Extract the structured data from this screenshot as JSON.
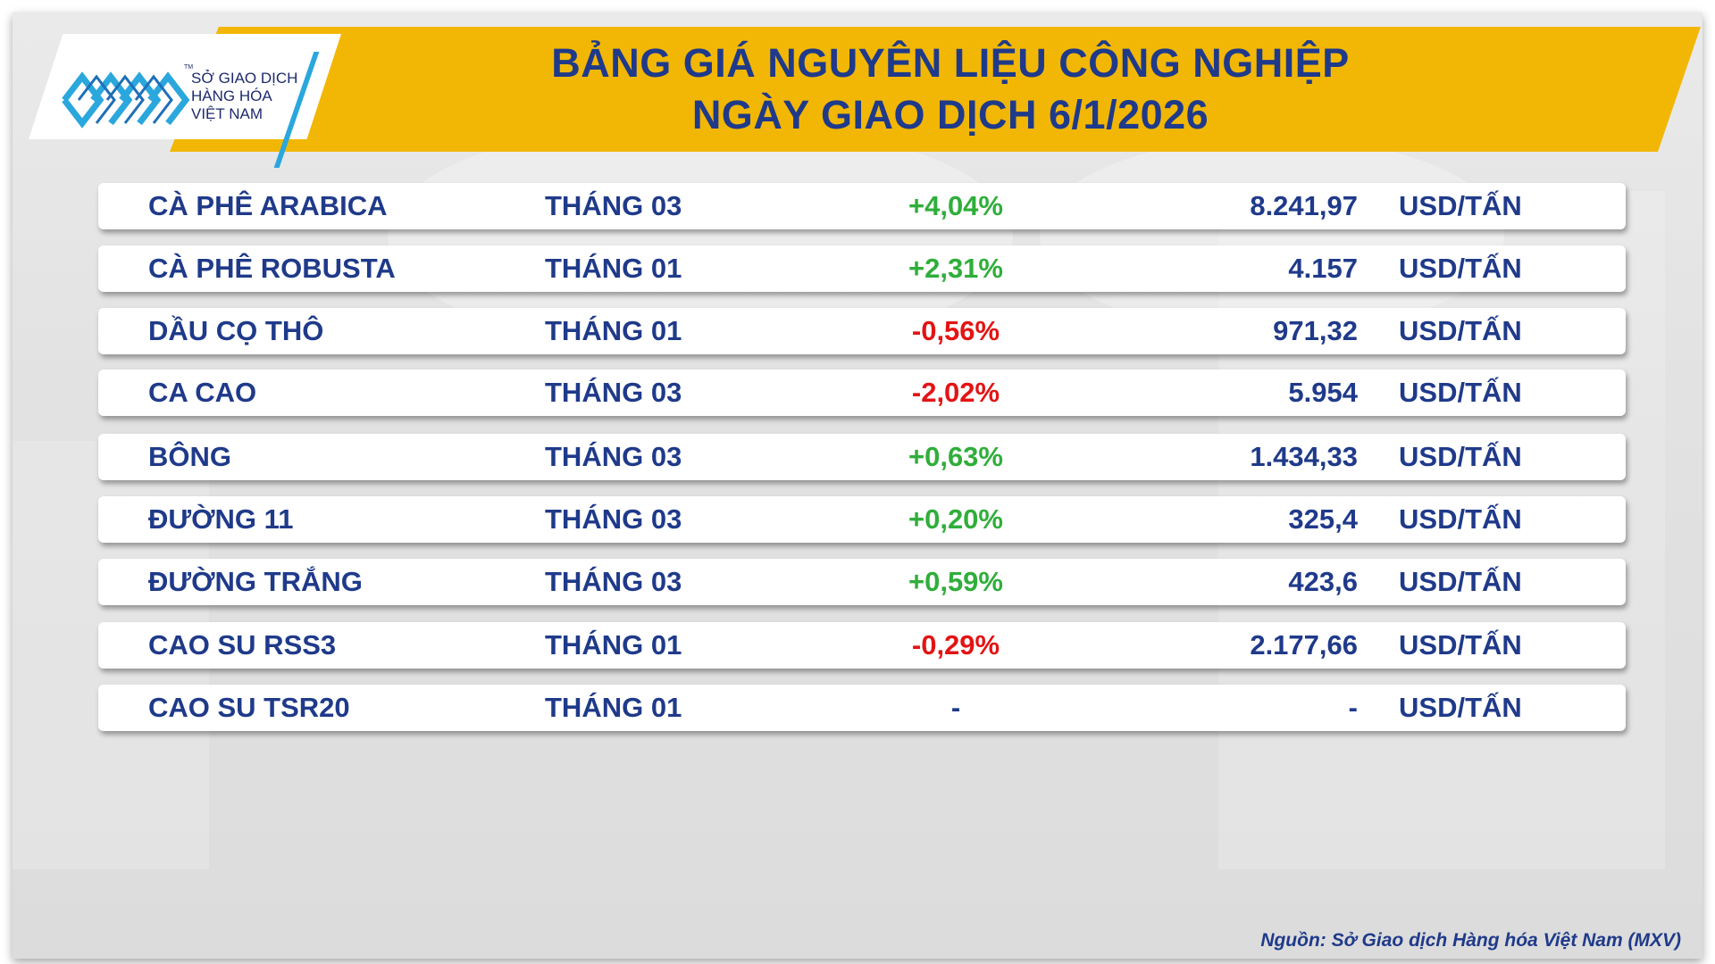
{
  "logo": {
    "line1": "SỞ GIAO DỊCH",
    "line2": "HÀNG HÓA",
    "line3": "VIỆT NAM",
    "tm": "TM"
  },
  "title": {
    "line1": "BẢNG GIÁ NGUYÊN LIỆU CÔNG NGHIỆP",
    "line2": "NGÀY GIAO DỊCH 6/1/2026"
  },
  "colors": {
    "banner": "#f2b705",
    "title_text": "#1f3a8a",
    "up": "#2fae3a",
    "down": "#e31414",
    "logo_blue": "#2aa7dd"
  },
  "rows": [
    {
      "name": "CÀ PHÊ ARABICA",
      "month": "THÁNG 03",
      "change": "+4,04%",
      "direction": "up",
      "price": "8.241,97",
      "unit": "USD/TẤN"
    },
    {
      "name": "CÀ PHÊ ROBUSTA",
      "month": "THÁNG 01",
      "change": "+2,31%",
      "direction": "up",
      "price": "4.157",
      "unit": "USD/TẤN"
    },
    {
      "name": "DẦU CỌ THÔ",
      "month": "THÁNG 01",
      "change": "-0,56%",
      "direction": "down",
      "price": "971,32",
      "unit": "USD/TẤN"
    },
    {
      "name": "CA CAO",
      "month": "THÁNG 03",
      "change": "-2,02%",
      "direction": "down",
      "price": "5.954",
      "unit": "USD/TẤN"
    },
    {
      "name": "BÔNG",
      "month": "THÁNG 03",
      "change": "+0,63%",
      "direction": "up",
      "price": "1.434,33",
      "unit": "USD/TẤN"
    },
    {
      "name": "ĐƯỜNG 11",
      "month": "THÁNG 03",
      "change": "+0,20%",
      "direction": "up",
      "price": "325,4",
      "unit": "USD/TẤN"
    },
    {
      "name": "ĐƯỜNG TRẮNG",
      "month": "THÁNG 03",
      "change": "+0,59%",
      "direction": "up",
      "price": "423,6",
      "unit": "USD/TẤN"
    },
    {
      "name": "CAO SU RSS3",
      "month": "THÁNG 01",
      "change": "-0,29%",
      "direction": "down",
      "price": "2.177,66",
      "unit": "USD/TẤN"
    },
    {
      "name": "CAO SU TSR20",
      "month": "THÁNG 01",
      "change": "-",
      "direction": "flat",
      "price": "-",
      "unit": "USD/TẤN"
    }
  ],
  "source": "Nguồn: Sở Giao dịch Hàng hóa Việt Nam (MXV)"
}
